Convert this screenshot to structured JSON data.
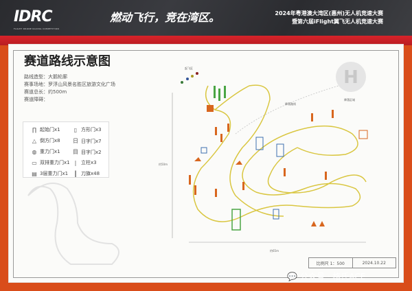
{
  "header": {
    "logo": "IDRC",
    "logo_sub": "FLIGHT DRONE RACING COMPETITION",
    "slogan": "燃动飞行，竞在湾区。",
    "event_line1": "2024年粤港澳大湾区(惠州)无人机竞速大赛",
    "event_line2": "暨第六届iFlight翼飞无人机竞速大赛"
  },
  "card": {
    "title": "赛道路线示意图",
    "info": [
      "路线造型：大鹅轮廓",
      "赛事场地：罗浮山风景名胜区旅游文化广场",
      "赛道总长：约500m",
      "赛道障碍："
    ],
    "legend": [
      {
        "icon": "start-gate",
        "label": "起始门x1"
      },
      {
        "icon": "square-gate",
        "label": "方形门x3"
      },
      {
        "icon": "inverted-gate",
        "label": "倒方门x8"
      },
      {
        "icon": "ri-gate",
        "label": "日字门x7"
      },
      {
        "icon": "gravity-gate",
        "label": "重力门x1"
      },
      {
        "icon": "mu-gate",
        "label": "目字门x2"
      },
      {
        "icon": "double-gravity-gate",
        "label": "双排重力门x1"
      },
      {
        "icon": "pillar",
        "label": "立柱x3"
      },
      {
        "icon": "triple-gravity-gate",
        "label": "3层重力门x1"
      },
      {
        "icon": "flag",
        "label": "刀旗x48"
      }
    ],
    "map": {
      "dim_height": "约50m",
      "dim_width": "约65m",
      "takeoff": "起飞区",
      "landing_route": "降落路线",
      "landing_area": "降落区域",
      "helipad": "H"
    },
    "scale": "比例尺 1：500",
    "date": "2024.10.22"
  },
  "watermark": "公众号 · 格氏ACE",
  "colors": {
    "track": "#d9c640",
    "gate_orange": "#d8661e",
    "gate_green": "#4aa544",
    "gate_blue": "#3c6fb0",
    "frame": "#d94d1a"
  }
}
